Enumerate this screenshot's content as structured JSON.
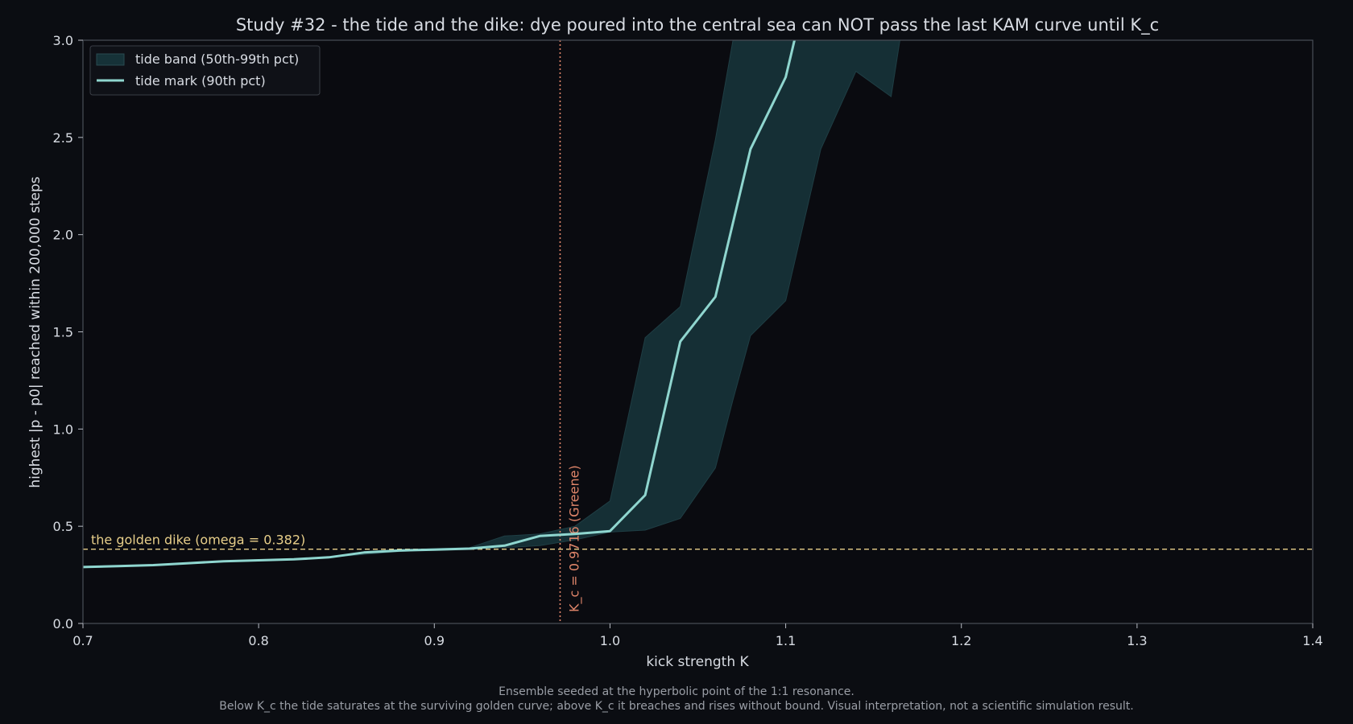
{
  "chart_data": {
    "type": "line",
    "title": "Study #32 - the tide and the dike: dye poured into the central sea can NOT pass the last KAM curve until K_c",
    "xlabel": "kick strength K",
    "ylabel": "highest |p - p0| reached within 200,000 steps",
    "xlim": [
      0.7,
      1.4
    ],
    "ylim": [
      0.0,
      3.0
    ],
    "x_ticks": [
      "0.7",
      "0.8",
      "0.9",
      "1.0",
      "1.1",
      "1.2",
      "1.3",
      "1.4"
    ],
    "y_ticks": [
      "0.0",
      "0.5",
      "1.0",
      "1.5",
      "2.0",
      "2.5",
      "3.0"
    ],
    "grid": false,
    "legend_position": "top-left",
    "legend": [
      {
        "label": "tide band (50th-99th pct)",
        "kind": "band",
        "color": "#163238"
      },
      {
        "label": "tide mark (90th pct)",
        "kind": "line",
        "color": "#8fd6cf"
      }
    ],
    "band": {
      "name": "tide band (50th-99th pct)",
      "x": [
        0.7,
        0.72,
        0.74,
        0.76,
        0.78,
        0.8,
        0.82,
        0.84,
        0.86,
        0.88,
        0.9,
        0.92,
        0.94,
        0.96,
        0.98,
        1.0,
        1.02,
        1.04,
        1.06,
        1.07,
        1.08,
        1.1,
        1.12,
        1.14,
        1.16,
        1.165
      ],
      "lower": [
        0.29,
        0.295,
        0.3,
        0.31,
        0.32,
        0.325,
        0.33,
        0.34,
        0.355,
        0.37,
        0.38,
        0.385,
        0.39,
        0.4,
        0.43,
        0.47,
        0.48,
        0.54,
        0.8,
        1.15,
        1.48,
        1.66,
        2.44,
        2.84,
        2.71,
        3.0
      ],
      "upper": [
        0.29,
        0.295,
        0.3,
        0.31,
        0.32,
        0.325,
        0.33,
        0.34,
        0.37,
        0.38,
        0.385,
        0.39,
        0.45,
        0.46,
        0.5,
        0.63,
        1.47,
        1.63,
        2.49,
        3.0,
        3.0,
        3.0,
        3.0,
        3.0,
        3.0,
        3.0
      ]
    },
    "series": [
      {
        "name": "tide mark (90th pct)",
        "color": "#8fd6cf",
        "x": [
          0.7,
          0.72,
          0.74,
          0.76,
          0.78,
          0.8,
          0.82,
          0.84,
          0.86,
          0.88,
          0.9,
          0.92,
          0.94,
          0.96,
          0.98,
          1.0,
          1.02,
          1.04,
          1.06,
          1.08,
          1.1,
          1.105
        ],
        "values": [
          0.29,
          0.295,
          0.3,
          0.31,
          0.32,
          0.325,
          0.33,
          0.34,
          0.365,
          0.375,
          0.38,
          0.385,
          0.4,
          0.45,
          0.46,
          0.475,
          0.66,
          1.45,
          1.68,
          2.44,
          2.81,
          3.0
        ]
      }
    ],
    "annotations": {
      "dike": {
        "y": 0.382,
        "label": "the golden dike (omega = 0.382)",
        "color": "#e8cf8a"
      },
      "kc": {
        "x": 0.9716,
        "label": "K_c = 0.9716 (Greene)",
        "color": "#e0866a"
      }
    },
    "footnote_lines": [
      "Ensemble seeded at the hyperbolic point of the 1:1 resonance.",
      "Below K_c the tide saturates at the surviving golden curve; above K_c it breaches and rises without bound. Visual interpretation, not a scientific simulation result."
    ]
  }
}
